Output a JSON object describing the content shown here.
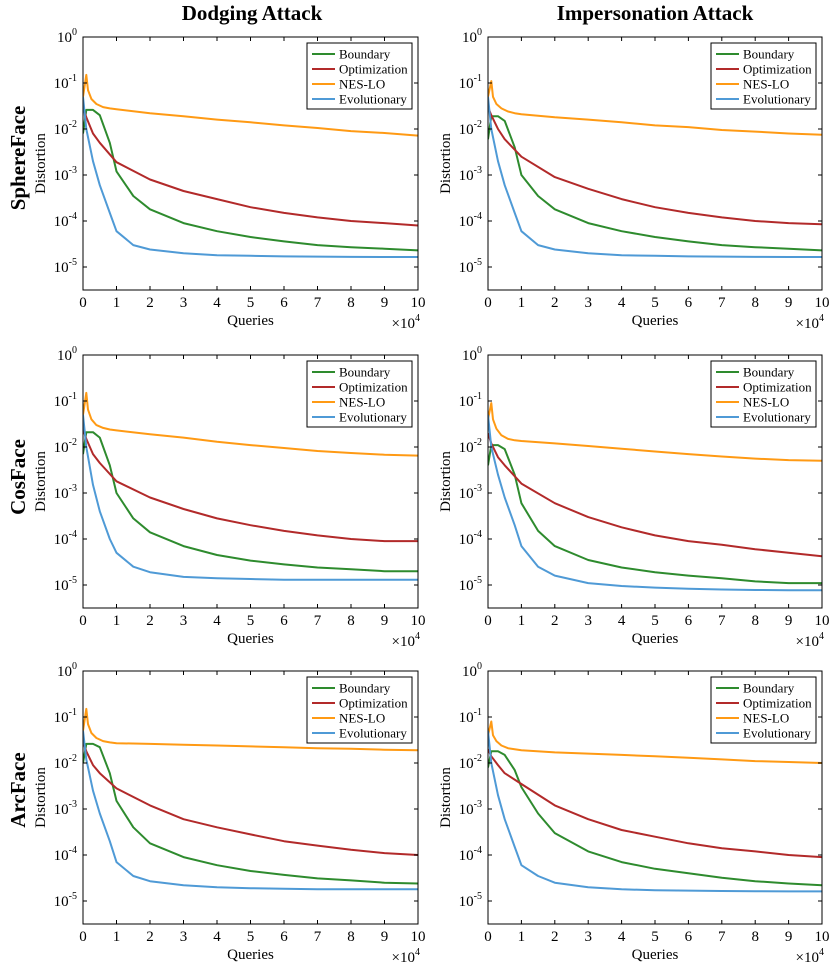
{
  "column_titles": [
    "Dodging Attack",
    "Impersonation Attack"
  ],
  "row_titles": [
    "SphereFace",
    "CosFace",
    "ArcFace"
  ],
  "axis_common": {
    "xlabel": "Queries",
    "ylabel": "Distortion",
    "x_multiplier": "×10",
    "x_multiplier_exp": "4",
    "x_ticks": [
      "0",
      "1",
      "2",
      "3",
      "4",
      "5",
      "6",
      "7",
      "8",
      "9",
      "10"
    ],
    "y_tick_base": "10",
    "y_tick_exps": [
      "0",
      "-1",
      "-2",
      "-3",
      "-4",
      "-5"
    ],
    "xlim": [
      0,
      10
    ],
    "ylim_log10": [
      -5.5,
      0
    ],
    "y_scale": "log",
    "grid": false,
    "legend_position": "top-right"
  },
  "colors": {
    "Boundary": "#2e8b2e",
    "Optimization": "#b22a2a",
    "NES-LO": "#ff9a14",
    "Evolutionary": "#4f9ad6"
  },
  "chart_data": [
    {
      "type": "line",
      "model": "SphereFace",
      "attack": "Dodging Attack",
      "xlabel": "Queries",
      "ylabel": "Distortion",
      "series": [
        {
          "name": "Boundary",
          "x": [
            0,
            0.1,
            0.3,
            0.5,
            0.8,
            1,
            1.5,
            2,
            3,
            4,
            5,
            6,
            7,
            8,
            9,
            10
          ],
          "y": [
            0.008,
            0.026,
            0.026,
            0.02,
            0.005,
            0.0012,
            0.00035,
            0.00018,
            9e-05,
            6e-05,
            4.5e-05,
            3.6e-05,
            3e-05,
            2.7e-05,
            2.5e-05,
            2.3e-05
          ]
        },
        {
          "name": "Optimization",
          "x": [
            0,
            0.1,
            0.3,
            0.5,
            1,
            2,
            3,
            4,
            5,
            6,
            7,
            8,
            9,
            10
          ],
          "y": [
            0.03,
            0.018,
            0.008,
            0.005,
            0.0019,
            0.0008,
            0.00045,
            0.0003,
            0.0002,
            0.00015,
            0.00012,
            0.0001,
            9e-05,
            8e-05
          ]
        },
        {
          "name": "NES-LO",
          "x": [
            0,
            0.1,
            0.15,
            0.25,
            0.4,
            0.6,
            0.8,
            1,
            2,
            3,
            4,
            5,
            6,
            7,
            8,
            9,
            10
          ],
          "y": [
            0.05,
            0.15,
            0.07,
            0.045,
            0.035,
            0.03,
            0.028,
            0.027,
            0.022,
            0.019,
            0.016,
            0.014,
            0.012,
            0.0105,
            0.009,
            0.0082,
            0.0072
          ]
        },
        {
          "name": "Evolutionary",
          "x": [
            0,
            0.1,
            0.3,
            0.5,
            0.8,
            1,
            1.5,
            2,
            3,
            4,
            5,
            6,
            7,
            8,
            9,
            10
          ],
          "y": [
            0.05,
            0.01,
            0.002,
            0.0006,
            0.00015,
            6e-05,
            3e-05,
            2.4e-05,
            2e-05,
            1.8e-05,
            1.75e-05,
            1.7e-05,
            1.68e-05,
            1.66e-05,
            1.65e-05,
            1.65e-05
          ]
        }
      ]
    },
    {
      "type": "line",
      "model": "SphereFace",
      "attack": "Impersonation Attack",
      "xlabel": "Queries",
      "ylabel": "Distortion",
      "series": [
        {
          "name": "Boundary",
          "x": [
            0,
            0.1,
            0.3,
            0.5,
            0.8,
            1,
            1.5,
            2,
            3,
            4,
            5,
            6,
            7,
            8,
            9,
            10
          ],
          "y": [
            0.006,
            0.019,
            0.019,
            0.015,
            0.004,
            0.001,
            0.00035,
            0.00018,
            9e-05,
            6e-05,
            4.5e-05,
            3.6e-05,
            3e-05,
            2.7e-05,
            2.5e-05,
            2.3e-05
          ]
        },
        {
          "name": "Optimization",
          "x": [
            0,
            0.1,
            0.3,
            0.5,
            1,
            2,
            3,
            4,
            5,
            6,
            7,
            8,
            9,
            10
          ],
          "y": [
            0.03,
            0.02,
            0.01,
            0.006,
            0.0025,
            0.0009,
            0.0005,
            0.0003,
            0.0002,
            0.00015,
            0.00012,
            0.0001,
            9e-05,
            8.5e-05
          ]
        },
        {
          "name": "NES-LO",
          "x": [
            0,
            0.1,
            0.15,
            0.25,
            0.4,
            0.6,
            0.8,
            1,
            2,
            3,
            4,
            5,
            6,
            7,
            8,
            9,
            10
          ],
          "y": [
            0.05,
            0.11,
            0.05,
            0.035,
            0.028,
            0.024,
            0.022,
            0.021,
            0.018,
            0.016,
            0.014,
            0.012,
            0.011,
            0.0095,
            0.0088,
            0.008,
            0.0075
          ]
        },
        {
          "name": "Evolutionary",
          "x": [
            0,
            0.1,
            0.3,
            0.5,
            0.8,
            1,
            1.5,
            2,
            3,
            4,
            5,
            6,
            7,
            8,
            9,
            10
          ],
          "y": [
            0.05,
            0.01,
            0.002,
            0.0006,
            0.00015,
            6e-05,
            3e-05,
            2.4e-05,
            2e-05,
            1.8e-05,
            1.75e-05,
            1.7e-05,
            1.68e-05,
            1.66e-05,
            1.65e-05,
            1.65e-05
          ]
        }
      ]
    },
    {
      "type": "line",
      "model": "CosFace",
      "attack": "Dodging Attack",
      "xlabel": "Queries",
      "ylabel": "Distortion",
      "series": [
        {
          "name": "Boundary",
          "x": [
            0,
            0.1,
            0.3,
            0.5,
            0.8,
            1,
            1.5,
            2,
            3,
            4,
            5,
            6,
            7,
            8,
            9,
            10
          ],
          "y": [
            0.007,
            0.021,
            0.021,
            0.016,
            0.004,
            0.001,
            0.00028,
            0.00014,
            7e-05,
            4.5e-05,
            3.4e-05,
            2.8e-05,
            2.4e-05,
            2.2e-05,
            2e-05,
            2e-05
          ]
        },
        {
          "name": "Optimization",
          "x": [
            0,
            0.1,
            0.3,
            0.5,
            1,
            2,
            3,
            4,
            5,
            6,
            7,
            8,
            9,
            10
          ],
          "y": [
            0.025,
            0.015,
            0.007,
            0.0045,
            0.0018,
            0.0008,
            0.00045,
            0.00028,
            0.0002,
            0.00015,
            0.00012,
            0.0001,
            9e-05,
            9e-05
          ]
        },
        {
          "name": "NES-LO",
          "x": [
            0,
            0.1,
            0.15,
            0.25,
            0.4,
            0.6,
            0.8,
            1,
            2,
            3,
            4,
            5,
            6,
            7,
            8,
            9,
            10
          ],
          "y": [
            0.05,
            0.15,
            0.065,
            0.04,
            0.03,
            0.026,
            0.024,
            0.023,
            0.019,
            0.016,
            0.013,
            0.011,
            0.0095,
            0.0082,
            0.0074,
            0.0068,
            0.0065
          ]
        },
        {
          "name": "Evolutionary",
          "x": [
            0,
            0.1,
            0.3,
            0.5,
            0.8,
            1,
            1.5,
            2,
            3,
            4,
            5,
            6,
            7,
            8,
            9,
            10
          ],
          "y": [
            0.05,
            0.01,
            0.0015,
            0.0004,
            0.0001,
            5e-05,
            2.5e-05,
            1.9e-05,
            1.5e-05,
            1.4e-05,
            1.35e-05,
            1.3e-05,
            1.3e-05,
            1.3e-05,
            1.3e-05,
            1.3e-05
          ]
        }
      ]
    },
    {
      "type": "line",
      "model": "CosFace",
      "attack": "Impersonation Attack",
      "xlabel": "Queries",
      "ylabel": "Distortion",
      "series": [
        {
          "name": "Boundary",
          "x": [
            0,
            0.1,
            0.3,
            0.5,
            0.8,
            1,
            1.5,
            2,
            3,
            4,
            5,
            6,
            7,
            8,
            9,
            10
          ],
          "y": [
            0.004,
            0.011,
            0.011,
            0.009,
            0.0025,
            0.0006,
            0.00015,
            7e-05,
            3.5e-05,
            2.4e-05,
            1.9e-05,
            1.6e-05,
            1.4e-05,
            1.2e-05,
            1.1e-05,
            1.1e-05
          ]
        },
        {
          "name": "Optimization",
          "x": [
            0,
            0.1,
            0.3,
            0.5,
            1,
            2,
            3,
            4,
            5,
            6,
            7,
            8,
            9,
            10
          ],
          "y": [
            0.02,
            0.012,
            0.006,
            0.004,
            0.0016,
            0.0006,
            0.0003,
            0.00018,
            0.00012,
            9e-05,
            7.5e-05,
            6e-05,
            5e-05,
            4.2e-05
          ]
        },
        {
          "name": "NES-LO",
          "x": [
            0,
            0.1,
            0.15,
            0.25,
            0.4,
            0.6,
            0.8,
            1,
            2,
            3,
            4,
            5,
            6,
            7,
            8,
            9,
            10
          ],
          "y": [
            0.04,
            0.09,
            0.04,
            0.025,
            0.018,
            0.015,
            0.014,
            0.0135,
            0.012,
            0.0105,
            0.0092,
            0.008,
            0.007,
            0.0062,
            0.0056,
            0.0052,
            0.005
          ]
        },
        {
          "name": "Evolutionary",
          "x": [
            0,
            0.1,
            0.3,
            0.5,
            0.8,
            1,
            1.5,
            2,
            3,
            4,
            5,
            6,
            7,
            8,
            9,
            10
          ],
          "y": [
            0.05,
            0.01,
            0.0025,
            0.0008,
            0.0002,
            7e-05,
            2.5e-05,
            1.6e-05,
            1.1e-05,
            9.5e-06,
            8.8e-06,
            8.3e-06,
            8e-06,
            7.8e-06,
            7.7e-06,
            7.7e-06
          ]
        }
      ]
    },
    {
      "type": "line",
      "model": "ArcFace",
      "attack": "Dodging Attack",
      "xlabel": "Queries",
      "ylabel": "Distortion",
      "series": [
        {
          "name": "Boundary",
          "x": [
            0,
            0.1,
            0.3,
            0.5,
            0.8,
            1,
            1.5,
            2,
            3,
            4,
            5,
            6,
            7,
            8,
            9,
            10
          ],
          "y": [
            0.01,
            0.026,
            0.026,
            0.022,
            0.006,
            0.0015,
            0.0004,
            0.00018,
            9e-05,
            6e-05,
            4.5e-05,
            3.7e-05,
            3.1e-05,
            2.8e-05,
            2.5e-05,
            2.4e-05
          ]
        },
        {
          "name": "Optimization",
          "x": [
            0,
            0.1,
            0.3,
            0.5,
            1,
            2,
            3,
            4,
            5,
            6,
            7,
            8,
            9,
            10
          ],
          "y": [
            0.03,
            0.018,
            0.009,
            0.006,
            0.0028,
            0.0012,
            0.0006,
            0.0004,
            0.00028,
            0.0002,
            0.00016,
            0.00013,
            0.00011,
            0.0001
          ]
        },
        {
          "name": "NES-LO",
          "x": [
            0,
            0.1,
            0.15,
            0.25,
            0.4,
            0.6,
            0.8,
            1,
            2,
            3,
            4,
            5,
            6,
            7,
            8,
            9,
            10
          ],
          "y": [
            0.05,
            0.15,
            0.07,
            0.045,
            0.035,
            0.03,
            0.028,
            0.027,
            0.026,
            0.025,
            0.024,
            0.023,
            0.022,
            0.021,
            0.0205,
            0.0195,
            0.019
          ]
        },
        {
          "name": "Evolutionary",
          "x": [
            0,
            0.1,
            0.3,
            0.5,
            0.8,
            1,
            1.5,
            2,
            3,
            4,
            5,
            6,
            7,
            8,
            9,
            10
          ],
          "y": [
            0.05,
            0.012,
            0.0025,
            0.0008,
            0.0002,
            7e-05,
            3.5e-05,
            2.7e-05,
            2.2e-05,
            2e-05,
            1.9e-05,
            1.85e-05,
            1.8e-05,
            1.8e-05,
            1.8e-05,
            1.8e-05
          ]
        }
      ]
    },
    {
      "type": "line",
      "model": "ArcFace",
      "attack": "Impersonation Attack",
      "xlabel": "Queries",
      "ylabel": "Distortion",
      "series": [
        {
          "name": "Boundary",
          "x": [
            0,
            0.1,
            0.3,
            0.5,
            0.8,
            1,
            1.5,
            2,
            3,
            4,
            5,
            6,
            7,
            8,
            9,
            10
          ],
          "y": [
            0.008,
            0.018,
            0.018,
            0.015,
            0.007,
            0.003,
            0.0008,
            0.0003,
            0.00012,
            7e-05,
            5e-05,
            4e-05,
            3.2e-05,
            2.7e-05,
            2.4e-05,
            2.2e-05
          ]
        },
        {
          "name": "Optimization",
          "x": [
            0,
            0.1,
            0.3,
            0.5,
            1,
            2,
            3,
            4,
            5,
            6,
            7,
            8,
            9,
            10
          ],
          "y": [
            0.02,
            0.014,
            0.009,
            0.006,
            0.0035,
            0.0012,
            0.0006,
            0.00035,
            0.00025,
            0.00018,
            0.00014,
            0.00012,
            0.0001,
            9e-05
          ]
        },
        {
          "name": "NES-LO",
          "x": [
            0,
            0.1,
            0.15,
            0.25,
            0.4,
            0.6,
            0.8,
            1,
            2,
            3,
            4,
            5,
            6,
            7,
            8,
            9,
            10
          ],
          "y": [
            0.04,
            0.08,
            0.04,
            0.03,
            0.024,
            0.021,
            0.02,
            0.019,
            0.017,
            0.016,
            0.015,
            0.014,
            0.013,
            0.012,
            0.011,
            0.0105,
            0.01
          ]
        },
        {
          "name": "Evolutionary",
          "x": [
            0,
            0.1,
            0.3,
            0.5,
            0.8,
            1,
            1.5,
            2,
            3,
            4,
            5,
            6,
            7,
            8,
            9,
            10
          ],
          "y": [
            0.05,
            0.01,
            0.002,
            0.0006,
            0.00015,
            6e-05,
            3.5e-05,
            2.5e-05,
            2e-05,
            1.8e-05,
            1.72e-05,
            1.68e-05,
            1.65e-05,
            1.63e-05,
            1.62e-05,
            1.62e-05
          ]
        }
      ]
    }
  ]
}
